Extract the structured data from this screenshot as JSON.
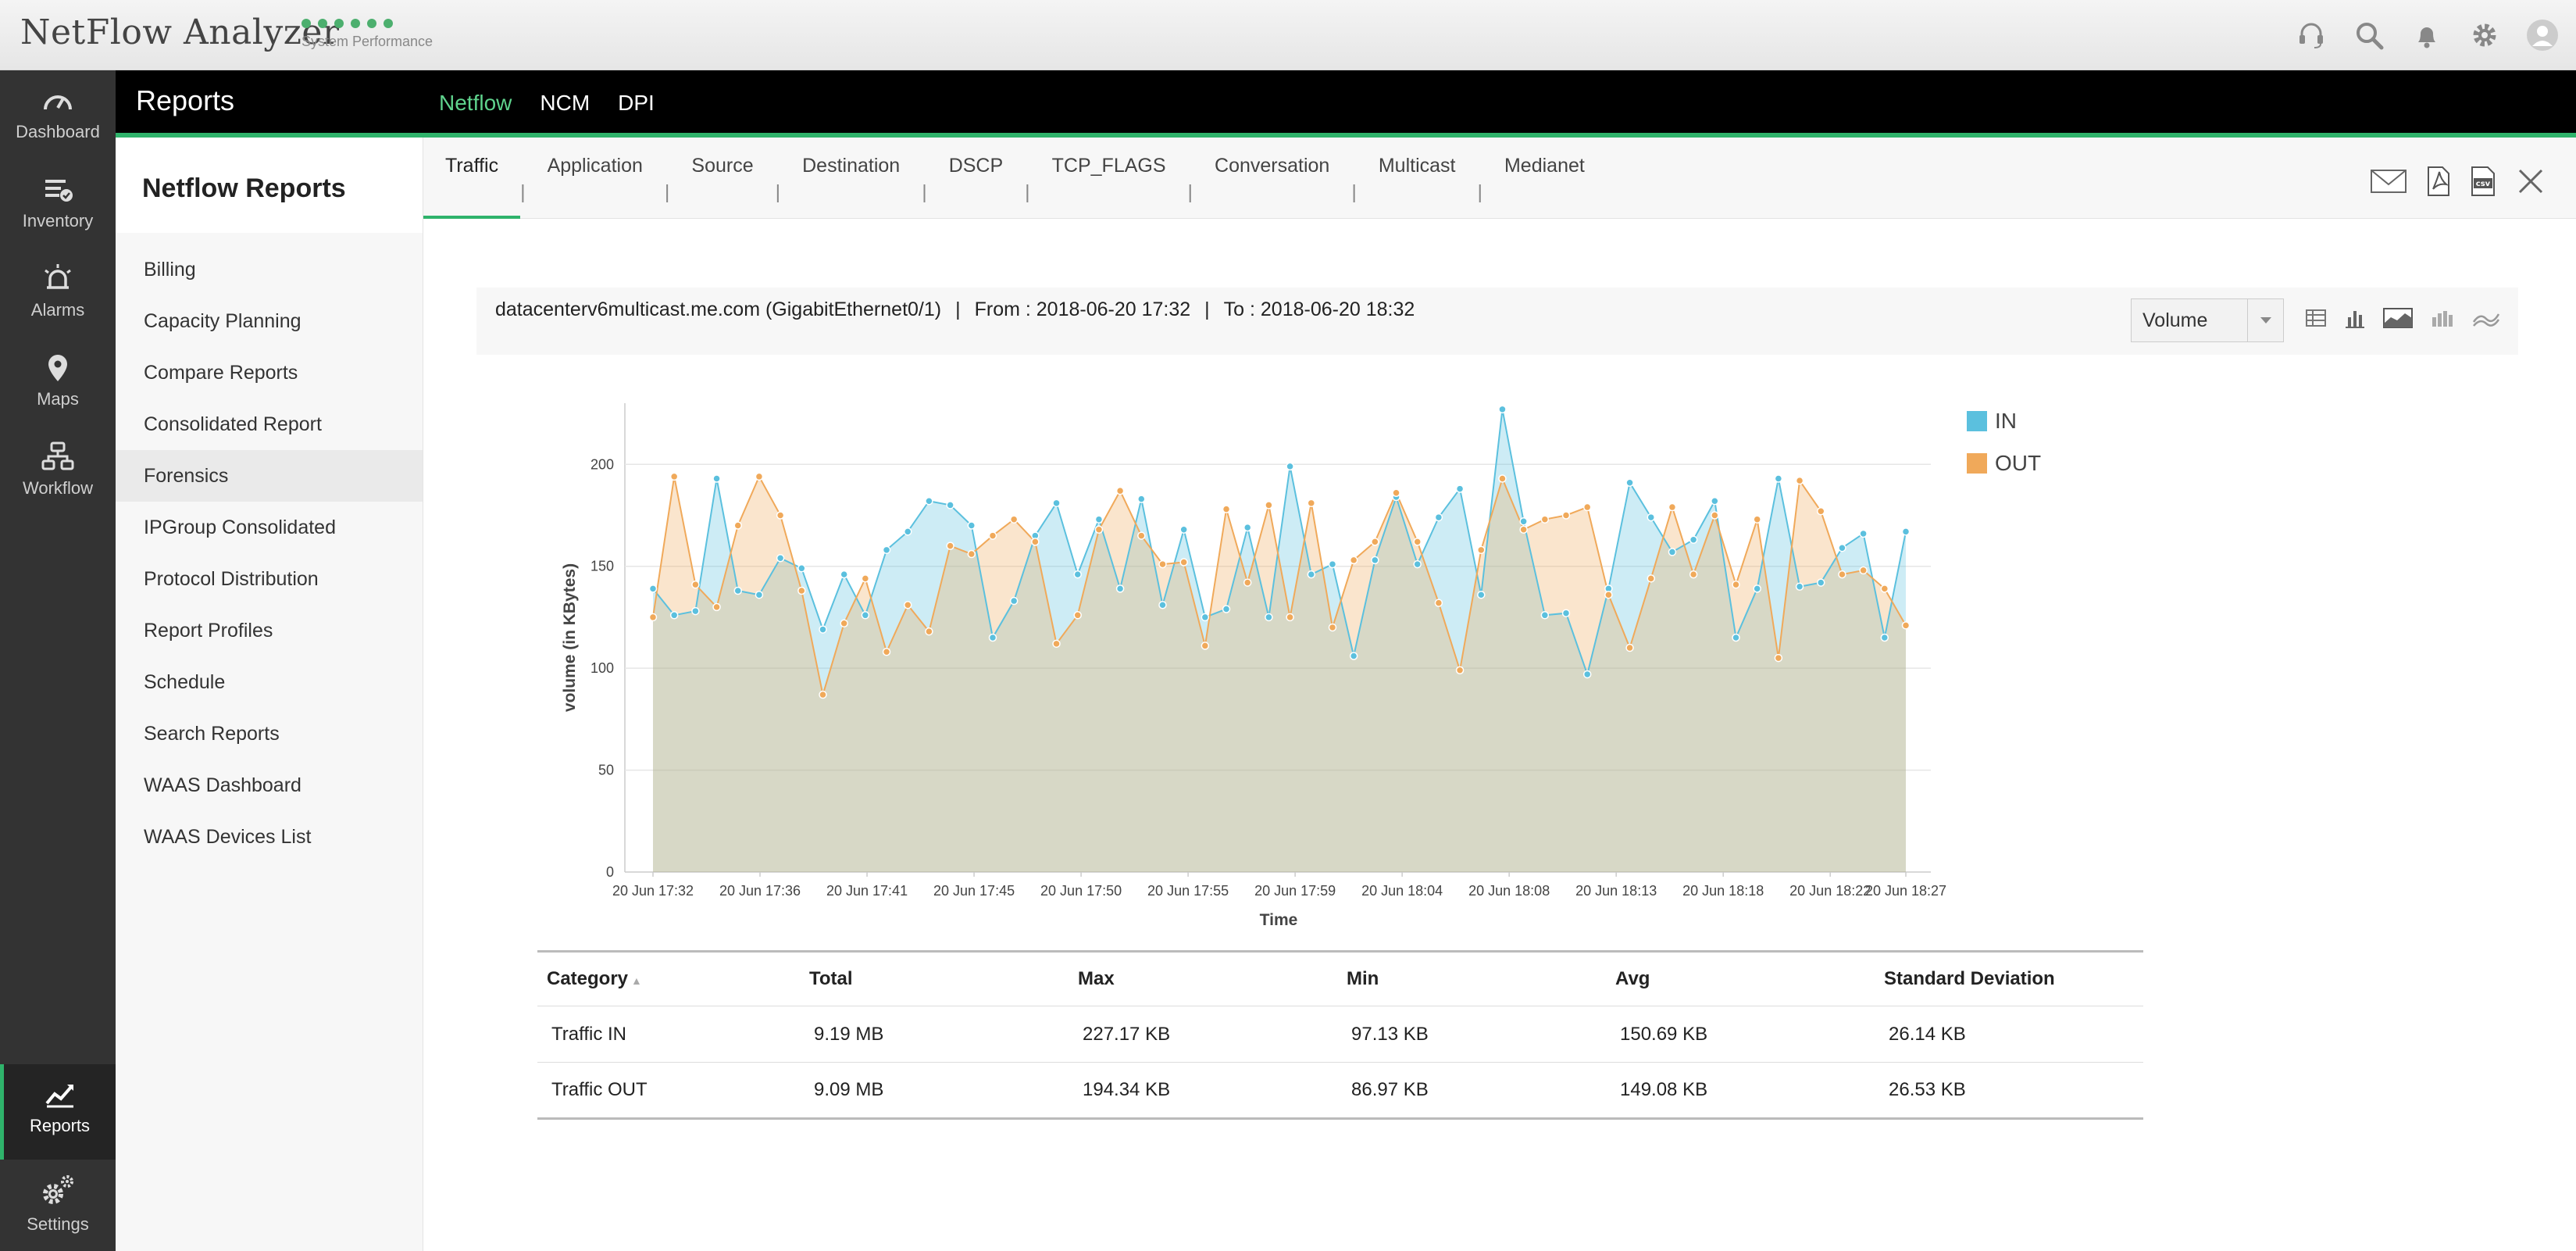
{
  "app": {
    "title": "NetFlow Analyzer",
    "status_label": "System Performance",
    "status_color": "#4caf6e",
    "top_icons": [
      "headset-icon",
      "search-icon",
      "bell-icon",
      "gear-icon",
      "user-icon"
    ]
  },
  "leftnav": {
    "items": [
      {
        "label": "Dashboard",
        "icon": "dashboard-icon"
      },
      {
        "label": "Inventory",
        "icon": "inventory-icon"
      },
      {
        "label": "Alarms",
        "icon": "alarm-icon"
      },
      {
        "label": "Maps",
        "icon": "map-pin-icon"
      },
      {
        "label": "Workflow",
        "icon": "workflow-icon"
      },
      {
        "label": "Reports",
        "icon": "reports-icon",
        "active": true
      },
      {
        "label": "Settings",
        "icon": "settings-icon"
      }
    ]
  },
  "reportsbar": {
    "title": "Reports",
    "tabs": [
      "Netflow",
      "NCM",
      "DPI"
    ],
    "active_tab": "Netflow",
    "accent": "#2fb36b"
  },
  "subnav": {
    "heading": "Netflow Reports",
    "items": [
      "Billing",
      "Capacity Planning",
      "Compare Reports",
      "Consolidated Report",
      "Forensics",
      "IPGroup Consolidated",
      "Protocol Distribution",
      "Report Profiles",
      "Schedule",
      "Search Reports",
      "WAAS Dashboard",
      "WAAS Devices List"
    ],
    "active_item": "Forensics"
  },
  "report_tabs": {
    "items": [
      "Traffic",
      "Application",
      "Source",
      "Destination",
      "DSCP",
      "TCP_FLAGS",
      "Conversation",
      "Multicast",
      "Medianet"
    ],
    "active": "Traffic",
    "actions": [
      "email-icon",
      "pdf-icon",
      "csv-icon",
      "close-icon"
    ]
  },
  "infobar": {
    "device": "datacenterv6multicast.me.com (GigabitEthernet0/1)",
    "from": "From : 2018-06-20 17:32",
    "to": "To : 2018-06-20 18:32",
    "separator": "|",
    "metric_select": "Volume",
    "view_icons": [
      "table-view-icon",
      "bar-chart-icon",
      "area-chart-icon",
      "stacked-bar-icon",
      "line-chart-icon"
    ]
  },
  "chart_data": {
    "type": "area",
    "xlabel": "Time",
    "ylabel": "volume (in KBytes)",
    "ylim": [
      0,
      230
    ],
    "yticks": [
      0,
      50,
      100,
      150,
      200
    ],
    "xtick_labels": [
      "20 Jun 17:32",
      "20 Jun 17:36",
      "20 Jun 17:41",
      "20 Jun 17:45",
      "20 Jun 17:50",
      "20 Jun 17:55",
      "20 Jun 17:59",
      "20 Jun 18:04",
      "20 Jun 18:08",
      "20 Jun 18:13",
      "20 Jun 18:18",
      "20 Jun 18:22",
      "20 Jun 18:27"
    ],
    "grid": true,
    "legend": "top-right",
    "series": [
      {
        "name": "IN",
        "color": "#5bc0de",
        "values": [
          139,
          126,
          128,
          193,
          138,
          136,
          154,
          149,
          119,
          146,
          126,
          158,
          167,
          182,
          180,
          170,
          115,
          133,
          165,
          181,
          146,
          173,
          139,
          183,
          131,
          168,
          125,
          129,
          169,
          125,
          199,
          146,
          151,
          106,
          153,
          184,
          151,
          174,
          188,
          136,
          227,
          172,
          126,
          127,
          97,
          139,
          191,
          174,
          157,
          163,
          182,
          115,
          139,
          193,
          140,
          142,
          159,
          166,
          115,
          167
        ]
      },
      {
        "name": "OUT",
        "color": "#f0a95a",
        "values": [
          125,
          194,
          141,
          130,
          170,
          194,
          175,
          138,
          87,
          122,
          144,
          108,
          131,
          118,
          160,
          156,
          165,
          173,
          162,
          112,
          126,
          168,
          187,
          165,
          151,
          152,
          111,
          178,
          142,
          180,
          125,
          181,
          120,
          153,
          162,
          186,
          162,
          132,
          99,
          158,
          193,
          168,
          173,
          175,
          179,
          136,
          110,
          144,
          179,
          146,
          175,
          141,
          173,
          105,
          192,
          177,
          146,
          148,
          139,
          121
        ]
      }
    ]
  },
  "stats_table": {
    "columns": [
      "Category",
      "Total",
      "Max",
      "Min",
      "Avg",
      "Standard Deviation"
    ],
    "rows": [
      [
        "Traffic IN",
        "9.19 MB",
        "227.17 KB",
        "97.13 KB",
        "150.69 KB",
        "26.14 KB"
      ],
      [
        "Traffic OUT",
        "9.09 MB",
        "194.34 KB",
        "86.97 KB",
        "149.08 KB",
        "26.53 KB"
      ]
    ]
  }
}
